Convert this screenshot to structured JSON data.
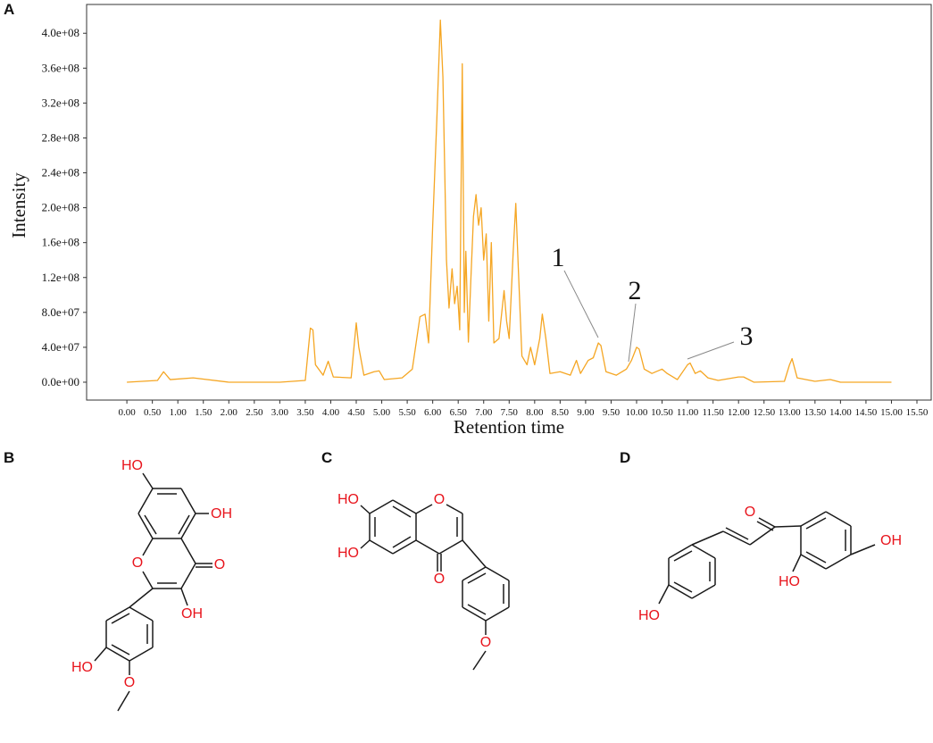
{
  "chart_data": {
    "type": "line",
    "x_label": "Retention time",
    "y_label": "Intensity",
    "color": "#f5a623",
    "x": [
      0,
      0.6,
      0.72,
      0.85,
      1.3,
      2,
      3,
      3.5,
      3.6,
      3.65,
      3.7,
      3.85,
      3.95,
      4.05,
      4.4,
      4.5,
      4.55,
      4.65,
      4.85,
      4.95,
      5.05,
      5.4,
      5.6,
      5.75,
      5.85,
      5.92,
      6,
      6.08,
      6.15,
      6.2,
      6.27,
      6.32,
      6.38,
      6.43,
      6.48,
      6.53,
      6.58,
      6.62,
      6.65,
      6.7,
      6.75,
      6.8,
      6.85,
      6.9,
      6.95,
      7,
      7.05,
      7.1,
      7.15,
      7.2,
      7.3,
      7.4,
      7.45,
      7.5,
      7.58,
      7.63,
      7.68,
      7.75,
      7.85,
      7.92,
      8,
      8.1,
      8.15,
      8.22,
      8.3,
      8.5,
      8.7,
      8.82,
      8.9,
      9.05,
      9.15,
      9.25,
      9.3,
      9.4,
      9.6,
      9.8,
      9.9,
      10,
      10.05,
      10.15,
      10.3,
      10.5,
      10.6,
      10.8,
      11,
      11.05,
      11.15,
      11.25,
      11.4,
      11.6,
      12,
      12.1,
      12.3,
      12.9,
      13,
      13.05,
      13.15,
      13.5,
      13.8,
      14,
      15
    ],
    "values": [
      0,
      2000000.0,
      12000000.0,
      3000000.0,
      5000000.0,
      0,
      0,
      2000000.0,
      62000000.0,
      60000000.0,
      20000000.0,
      8000000.0,
      24000000.0,
      6000000.0,
      5000000.0,
      68000000.0,
      40000000.0,
      8000000.0,
      12000000.0,
      13000000.0,
      3000000.0,
      5000000.0,
      15000000.0,
      75000000.0,
      78000000.0,
      45000000.0,
      180000000.0,
      300000000.0,
      415000000.0,
      350000000.0,
      140000000.0,
      85000000.0,
      130000000.0,
      90000000.0,
      110000000.0,
      60000000.0,
      365000000.0,
      80000000.0,
      150000000.0,
      46000000.0,
      120000000.0,
      190000000.0,
      215000000.0,
      180000000.0,
      200000000.0,
      140000000.0,
      170000000.0,
      70000000.0,
      160000000.0,
      45000000.0,
      50000000.0,
      105000000.0,
      70000000.0,
      50000000.0,
      150000000.0,
      205000000.0,
      130000000.0,
      30000000.0,
      20000000.0,
      40000000.0,
      20000000.0,
      50000000.0,
      78000000.0,
      50000000.0,
      10000000.0,
      12000000.0,
      8000000.0,
      25000000.0,
      10000000.0,
      25000000.0,
      28000000.0,
      45000000.0,
      42000000.0,
      12000000.0,
      8000000.0,
      15000000.0,
      25000000.0,
      40000000.0,
      38000000.0,
      15000000.0,
      10000000.0,
      15000000.0,
      10000000.0,
      3000000.0,
      20000000.0,
      22000000.0,
      10000000.0,
      13000000.0,
      5000000.0,
      2000000.0,
      6000000.0,
      6000000.0,
      0,
      1000000.0,
      20000000.0,
      27000000.0,
      5000000.0,
      1000000.0,
      3000000.0,
      0,
      0
    ],
    "xlim": [
      -0.79,
      15.78
    ],
    "ylim": [
      -20500000.0,
      433000000.0
    ],
    "xticks": [
      {
        "value": 0,
        "label": "0.00"
      },
      {
        "value": 0.5,
        "label": "0.50"
      },
      {
        "value": 1,
        "label": "1.00"
      },
      {
        "value": 1.5,
        "label": "1.50"
      },
      {
        "value": 2,
        "label": "2.00"
      },
      {
        "value": 2.5,
        "label": "2.50"
      },
      {
        "value": 3,
        "label": "3.00"
      },
      {
        "value": 3.5,
        "label": "3.50"
      },
      {
        "value": 4,
        "label": "4.00"
      },
      {
        "value": 4.5,
        "label": "4.50"
      },
      {
        "value": 5,
        "label": "5.00"
      },
      {
        "value": 5.5,
        "label": "5.50"
      },
      {
        "value": 6,
        "label": "6.00"
      },
      {
        "value": 6.5,
        "label": "6.50"
      },
      {
        "value": 7,
        "label": "7.00"
      },
      {
        "value": 7.5,
        "label": "7.50"
      },
      {
        "value": 8,
        "label": "8.00"
      },
      {
        "value": 8.5,
        "label": "8.50"
      },
      {
        "value": 9,
        "label": "9.00"
      },
      {
        "value": 9.5,
        "label": "9.50"
      },
      {
        "value": 10,
        "label": "10.00"
      },
      {
        "value": 10.5,
        "label": "10.50"
      },
      {
        "value": 11,
        "label": "11.00"
      },
      {
        "value": 11.5,
        "label": "11.50"
      },
      {
        "value": 12,
        "label": "12.00"
      },
      {
        "value": 12.5,
        "label": "12.50"
      },
      {
        "value": 13,
        "label": "13.00"
      },
      {
        "value": 13.5,
        "label": "13.50"
      },
      {
        "value": 14,
        "label": "14.00"
      },
      {
        "value": 14.5,
        "label": "14.50"
      },
      {
        "value": 15,
        "label": "15.00"
      },
      {
        "value": 15.5,
        "label": "15.50"
      }
    ],
    "yticks": [
      {
        "value": 0,
        "label": "0.0e+00"
      },
      {
        "value": 40000000.0,
        "label": "4.0e+07"
      },
      {
        "value": 80000000.0,
        "label": "8.0e+07"
      },
      {
        "value": 120000000.0,
        "label": "1.2e+08"
      },
      {
        "value": 160000000.0,
        "label": "1.6e+08"
      },
      {
        "value": 200000000.0,
        "label": "2.0e+08"
      },
      {
        "value": 240000000.0,
        "label": "2.4e+08"
      },
      {
        "value": 280000000.0,
        "label": "2.8e+08"
      },
      {
        "value": 320000000.0,
        "label": "3.2e+08"
      },
      {
        "value": 360000000.0,
        "label": "3.6e+08"
      },
      {
        "value": 400000000.0,
        "label": "4.0e+08"
      }
    ],
    "annotations": [
      "1",
      "2",
      "3"
    ]
  },
  "figure": {
    "panel_labels": [
      "A",
      "B",
      "C",
      "D"
    ],
    "structures": [
      {
        "labels": [
          "HO",
          "OH",
          "O",
          "O",
          "OH",
          "HO",
          "O"
        ]
      },
      {
        "labels": [
          "HO",
          "O",
          "HO",
          "O",
          "O"
        ]
      },
      {
        "labels": [
          "O",
          "OH",
          "HO",
          "HO"
        ]
      }
    ]
  }
}
